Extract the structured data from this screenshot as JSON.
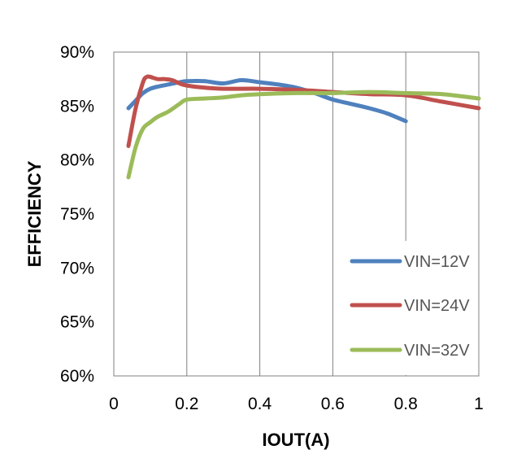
{
  "chart_data": {
    "type": "line",
    "title": "",
    "xlabel": "IOUT(A)",
    "ylabel": "EFFICIENCY",
    "xlim": [
      0,
      1
    ],
    "ylim": [
      60,
      90
    ],
    "x_ticks": [
      {
        "value": 0,
        "label": "0"
      },
      {
        "value": 0.2,
        "label": "0.2"
      },
      {
        "value": 0.4,
        "label": "0.4"
      },
      {
        "value": 0.6,
        "label": "0.6"
      },
      {
        "value": 0.8,
        "label": "0.8"
      },
      {
        "value": 1,
        "label": "1"
      }
    ],
    "y_ticks": [
      {
        "value": 60,
        "label": "60%"
      },
      {
        "value": 65,
        "label": "65%"
      },
      {
        "value": 70,
        "label": "70%"
      },
      {
        "value": 75,
        "label": "75%"
      },
      {
        "value": 80,
        "label": "80%"
      },
      {
        "value": 85,
        "label": "85%"
      },
      {
        "value": 90,
        "label": "90%"
      }
    ],
    "grid": "vertical",
    "legend_position": "bottom-right",
    "series": [
      {
        "name": "VIN=12V",
        "color": "#4f81bd",
        "x": [
          0.04,
          0.06,
          0.08,
          0.1,
          0.12,
          0.15,
          0.18,
          0.2,
          0.25,
          0.3,
          0.35,
          0.4,
          0.45,
          0.5,
          0.55,
          0.6,
          0.65,
          0.7,
          0.75,
          0.8
        ],
        "y": [
          84.8,
          85.5,
          86.2,
          86.6,
          86.8,
          87.0,
          87.2,
          87.3,
          87.3,
          87.1,
          87.4,
          87.2,
          87.0,
          86.7,
          86.2,
          85.6,
          85.2,
          84.8,
          84.3,
          83.6
        ]
      },
      {
        "name": "VIN=24V",
        "color": "#c0504d",
        "x": [
          0.04,
          0.06,
          0.08,
          0.09,
          0.1,
          0.12,
          0.14,
          0.16,
          0.18,
          0.2,
          0.25,
          0.3,
          0.4,
          0.5,
          0.6,
          0.7,
          0.8,
          0.9,
          1.0
        ],
        "y": [
          81.3,
          84.8,
          87.2,
          87.7,
          87.7,
          87.5,
          87.5,
          87.4,
          87.1,
          86.9,
          86.7,
          86.6,
          86.6,
          86.5,
          86.3,
          86.1,
          86.0,
          85.4,
          84.8
        ]
      },
      {
        "name": "VIN=32V",
        "color": "#9bbb59",
        "x": [
          0.04,
          0.06,
          0.08,
          0.1,
          0.12,
          0.15,
          0.18,
          0.2,
          0.25,
          0.3,
          0.35,
          0.4,
          0.5,
          0.6,
          0.7,
          0.8,
          0.9,
          1.0
        ],
        "y": [
          78.4,
          81.2,
          82.9,
          83.5,
          84.0,
          84.5,
          85.2,
          85.6,
          85.7,
          85.8,
          86.0,
          86.1,
          86.2,
          86.2,
          86.3,
          86.2,
          86.1,
          85.7
        ]
      }
    ]
  }
}
